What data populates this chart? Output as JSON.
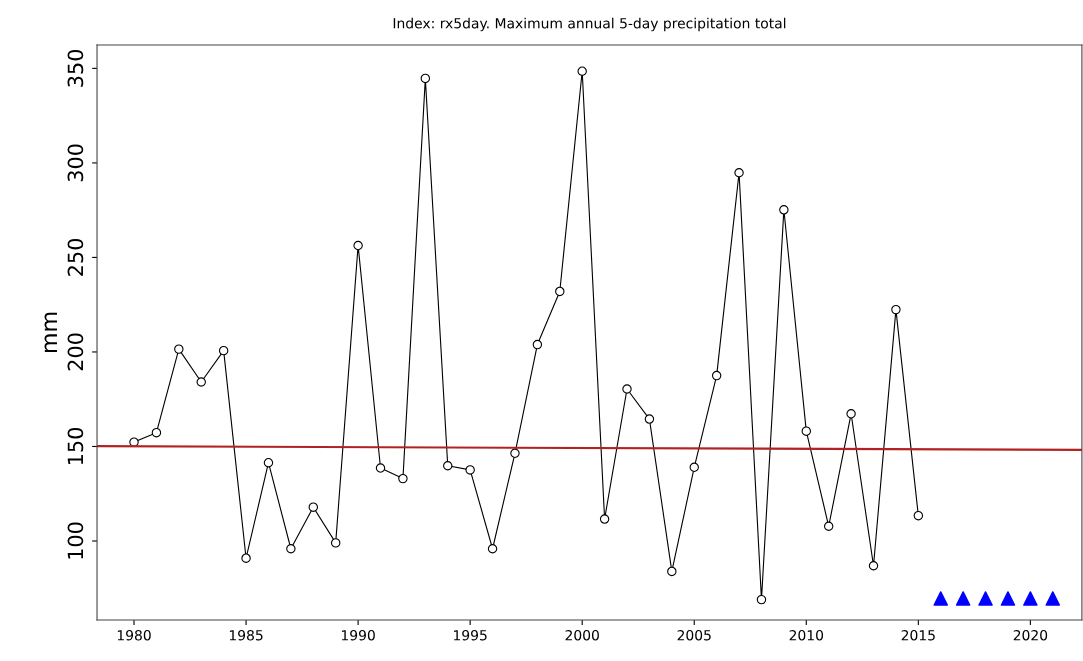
{
  "chart_data": {
    "type": "line",
    "title": "Index: rx5day. Maximum annual 5-day precipitation total",
    "ylabel": "mm",
    "xlim": [
      1978.35,
      2022.3
    ],
    "xticks": [
      1980,
      1985,
      1990,
      1995,
      2000,
      2005,
      2010,
      2015,
      2020
    ],
    "ylim": [
      58.2,
      362.4
    ],
    "yticks": [
      100,
      150,
      200,
      250,
      300,
      350
    ],
    "grid": false,
    "series": [
      {
        "marker": "circle",
        "color": "#000000",
        "x": [
          1980,
          1981,
          1982,
          1983,
          1984,
          1985,
          1986,
          1987,
          1988,
          1989,
          1990,
          1991,
          1992,
          1993,
          1994,
          1995,
          1996,
          1997,
          1998,
          1999,
          2000,
          2001,
          2002,
          2003,
          2004,
          2005,
          2006,
          2007,
          2008,
          2009,
          2010,
          2011,
          2012,
          2013,
          2014,
          2015
        ],
        "values": [
          152.3,
          157.3,
          201.5,
          184.1,
          200.7,
          90.9,
          141.4,
          95.9,
          117.9,
          99.0,
          256.3,
          138.6,
          133.0,
          344.7,
          139.8,
          137.6,
          95.9,
          146.4,
          203.9,
          232.0,
          348.5,
          111.6,
          180.4,
          164.5,
          83.9,
          139.0,
          187.5,
          294.8,
          69.0,
          275.2,
          158.1,
          107.8,
          167.3,
          86.9,
          222.4,
          113.4
        ]
      },
      {
        "marker": "none",
        "color": "#b22222",
        "x": [
          1978.35,
          2022.3
        ],
        "values": [
          150.2,
          148.2
        ]
      },
      {
        "type": "scatter",
        "marker": "triangle",
        "color": "#0000ff",
        "x": [
          2016,
          2017,
          2018,
          2019,
          2020,
          2021
        ],
        "values": [
          69.6,
          69.6,
          69.6,
          69.6,
          69.6,
          69.6
        ]
      }
    ]
  }
}
